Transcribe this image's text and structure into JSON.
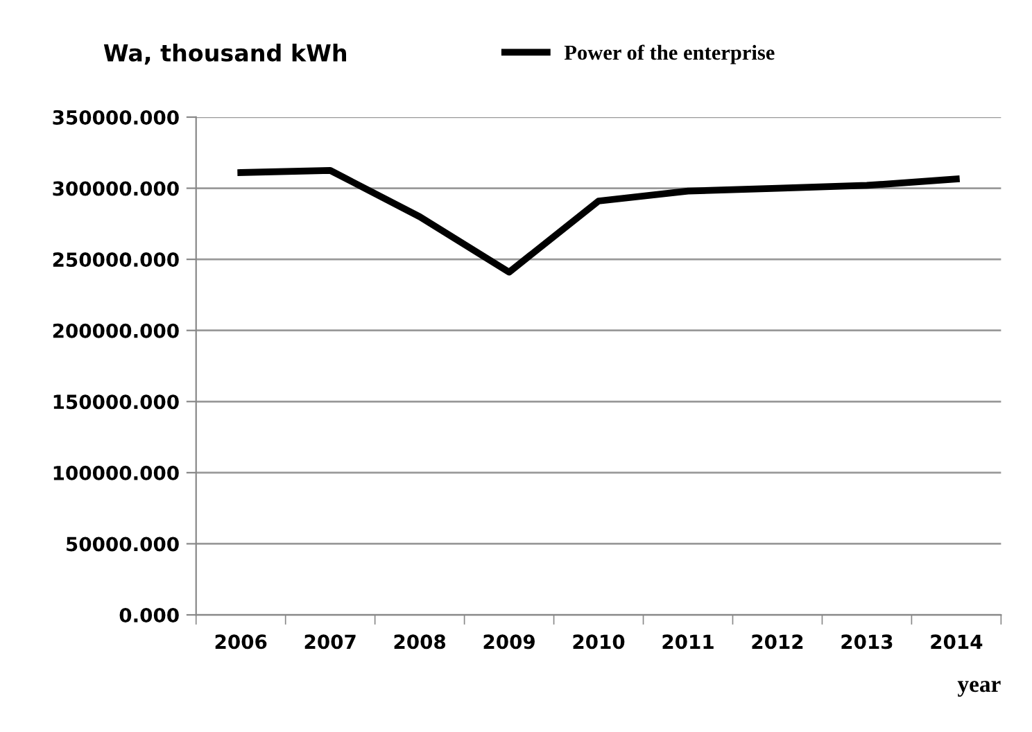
{
  "chart_data": {
    "type": "line",
    "ylabel": "Wa, thousand kWh",
    "xlabel": "year",
    "categories": [
      "2006",
      "2007",
      "2008",
      "2009",
      "2010",
      "2011",
      "2012",
      "2013",
      "2014"
    ],
    "series": [
      {
        "name": "Power of the enterprise",
        "color": "#000000",
        "values": [
          311000,
          312500,
          280000,
          241000,
          291000,
          298000,
          300000,
          302000,
          306500
        ]
      }
    ],
    "ylim": [
      0,
      350000
    ],
    "yticks": [
      {
        "value": 0,
        "label": "0.000"
      },
      {
        "value": 50000,
        "label": "50000.000"
      },
      {
        "value": 100000,
        "label": "100000.000"
      },
      {
        "value": 150000,
        "label": "150000.000"
      },
      {
        "value": 200000,
        "label": "200000.000"
      },
      {
        "value": 250000,
        "label": "250000.000"
      },
      {
        "value": 300000,
        "label": "300000.000"
      },
      {
        "value": 350000,
        "label": "350000.000"
      }
    ],
    "grid": "y",
    "legend": "top",
    "marker": "none",
    "line_style": "solid"
  }
}
